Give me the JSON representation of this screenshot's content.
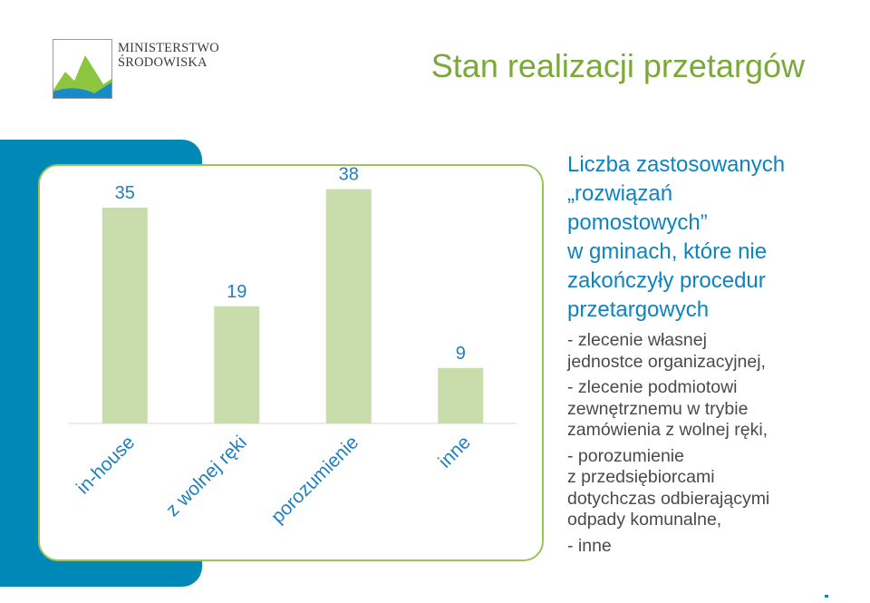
{
  "logo": {
    "line1": "MINISTERSTWO",
    "line2": "ŚRODOWISKA",
    "icon": "ministry-mountain-logo-icon",
    "colors": {
      "green": "#8cc63f",
      "blue": "#1a8ac6"
    }
  },
  "slide": {
    "title": "Stan realizacji przetargów"
  },
  "colors": {
    "accent_green": "#7ba83a",
    "panel_blue": "#0089b7",
    "bar_fill": "#c9dcab",
    "label_blue": "#1f7fbf",
    "card_border": "#9cc25a"
  },
  "chart_data": {
    "type": "bar",
    "categories": [
      "in-house",
      "z wolnej ręki",
      "porozumienie",
      "inne"
    ],
    "values": [
      35,
      19,
      38,
      9
    ],
    "ylim": [
      0,
      40
    ],
    "grid": false,
    "data_labels": true
  },
  "side_panel": {
    "heading_lines": [
      "Liczba zastosowanych",
      "„rozwiązań",
      "pomostowych”",
      "w gminach, które nie",
      "zakończyły procedur",
      "przetargowych"
    ],
    "bullets": [
      [
        "- zlecenie własnej",
        "jednostce organizacyjnej,"
      ],
      [
        "- zlecenie podmiotowi",
        "zewnętrznemu w trybie",
        "zamówienia z wolnej ręki,"
      ],
      [
        "- porozumienie",
        "z przedsiębiorcami",
        "dotychczas odbierającymi",
        "odpady komunalne,"
      ],
      [
        "- inne"
      ]
    ]
  }
}
